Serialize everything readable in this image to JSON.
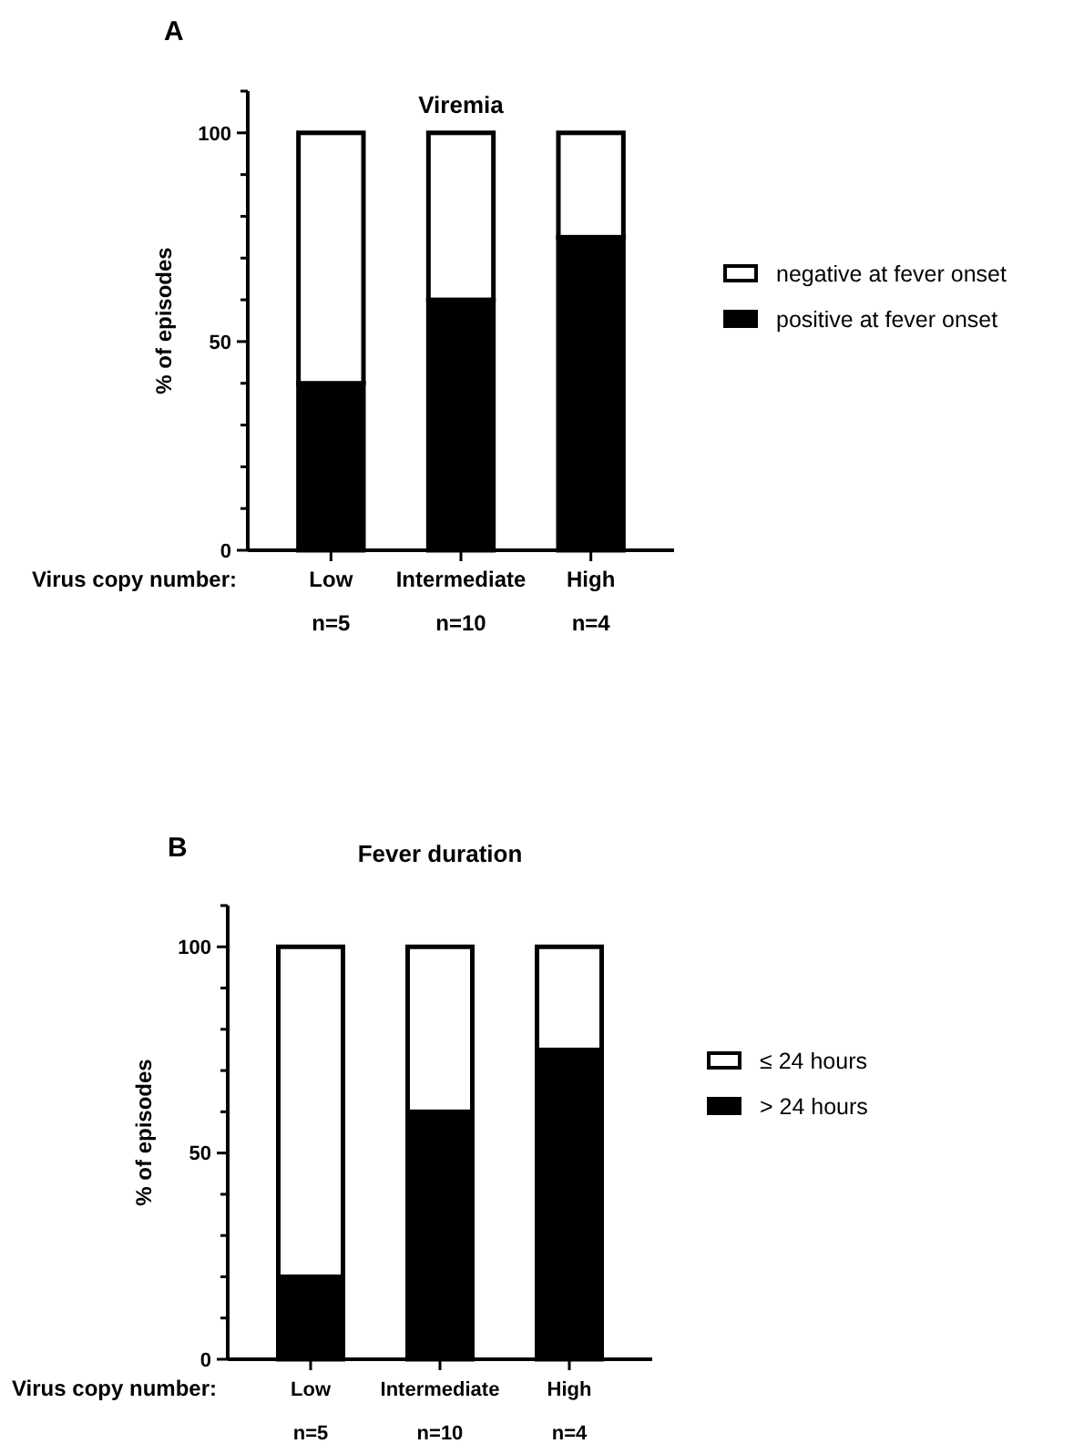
{
  "chart_data": [
    {
      "type": "bar",
      "title": "Viremia",
      "ylabel": "% of episodes",
      "xlabel": "Virus copy number:",
      "annotations": [
        "A"
      ],
      "categories": [
        "Low\nn=5",
        "Intermediate\nn=10",
        "High\nn=4"
      ],
      "stacked": true,
      "legend": "right",
      "ylim": [
        0,
        110
      ],
      "yticks": [
        0,
        {
          "value": 10,
          "label": null
        },
        {
          "value": 20,
          "label": null
        },
        {
          "value": 30,
          "label": null
        },
        {
          "value": 40,
          "label": null
        },
        50,
        {
          "value": 60,
          "label": null
        },
        {
          "value": 70,
          "label": null
        },
        {
          "value": 80,
          "label": null
        },
        {
          "value": 90,
          "label": null
        },
        100,
        {
          "value": 110,
          "label": null
        }
      ],
      "series": [
        {
          "name": "positive at fever onset",
          "color": "#000000",
          "values": [
            40,
            60,
            75
          ]
        },
        {
          "name": "negative at fever onset",
          "color": "#ffffff",
          "values": [
            60,
            40,
            25
          ]
        }
      ]
    },
    {
      "type": "bar",
      "title": "Fever duration",
      "ylabel": "% of episodes",
      "xlabel": "Virus copy number:",
      "annotations": [
        "B"
      ],
      "categories": [
        "Low\nn=5",
        "Intermediate\nn=10",
        "High\nn=4"
      ],
      "stacked": true,
      "legend": "right",
      "ylim": [
        0,
        110
      ],
      "yticks": [
        0,
        {
          "value": 10,
          "label": null
        },
        {
          "value": 20,
          "label": null
        },
        {
          "value": 30,
          "label": null
        },
        {
          "value": 40,
          "label": null
        },
        50,
        {
          "value": 60,
          "label": null
        },
        {
          "value": 70,
          "label": null
        },
        {
          "value": 80,
          "label": null
        },
        {
          "value": 90,
          "label": null
        },
        100,
        {
          "value": 110,
          "label": null
        }
      ],
      "series": [
        {
          "name": "> 24 hours",
          "color": "#000000",
          "values": [
            20,
            60,
            75
          ]
        },
        {
          "name": "≤ 24 hours",
          "color": "#ffffff",
          "values": [
            80,
            40,
            25
          ]
        }
      ]
    }
  ]
}
